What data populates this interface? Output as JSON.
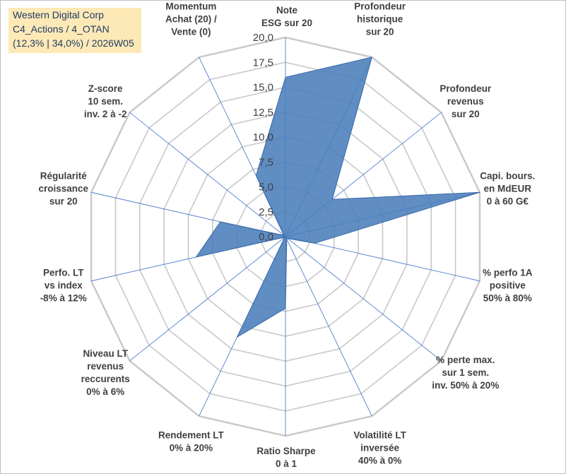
{
  "title_box": {
    "line1": "Western Digital Corp",
    "line2": "C4_Actions / 4_OTAN",
    "line3": "(12,3% | 34,0%) / 2026W05"
  },
  "colors": {
    "fill": "#4a7ebb",
    "stroke": "#3a68a8",
    "grid": "#c8c8c8",
    "spoke": "#4f7fd0",
    "title_box_bg": "#fde9b6"
  },
  "chart_data": {
    "type": "radar",
    "range": [
      0,
      20
    ],
    "ticks": [
      "0,0",
      "2,5",
      "5,0",
      "7,5",
      "10,0",
      "12,5",
      "15,0",
      "17,5",
      "20,0"
    ],
    "axes": [
      {
        "lines": [
          "Note",
          "ESG sur 20"
        ],
        "value": 16.0
      },
      {
        "lines": [
          "Profondeur",
          "historique",
          "sur 20"
        ],
        "value": 20.0
      },
      {
        "lines": [
          "Profondeur",
          "revenus",
          "sur 20"
        ],
        "value": 6.0
      },
      {
        "lines": [
          "Capi. bours.",
          "en MdEUR",
          "0 à 60 G€"
        ],
        "value": 20.0
      },
      {
        "lines": [
          "% perfo 1A",
          "positive",
          "50% à 80%"
        ],
        "value": 3.0
      },
      {
        "lines": [
          "% perte max.",
          "sur 1 sem.",
          "inv. 50% à 20%"
        ],
        "value": 0.3
      },
      {
        "lines": [
          "Volatilité LT",
          "inversée",
          "40% à 0%"
        ],
        "value": 0.3
      },
      {
        "lines": [
          "Ratio Sharpe",
          "0 à 1"
        ],
        "value": 7.2
      },
      {
        "lines": [
          "Rendement LT",
          "0% à 20%"
        ],
        "value": 11.2
      },
      {
        "lines": [
          "Niveau LT",
          "revenus",
          "reccurents",
          "0% à 6%"
        ],
        "value": 0.1
      },
      {
        "lines": [
          "Perfo. LT",
          "vs index",
          "-8% à 12%"
        ],
        "value": 9.2
      },
      {
        "lines": [
          "Régularité",
          "croissance",
          "sur 20"
        ],
        "value": 6.7
      },
      {
        "lines": [
          "Z-score",
          "10 sem.",
          "inv. 2 à -2"
        ],
        "value": 0.2
      },
      {
        "lines": [
          "Momentum",
          "Achat (20) /",
          "Vente (0)"
        ],
        "value": 6.8
      }
    ]
  }
}
